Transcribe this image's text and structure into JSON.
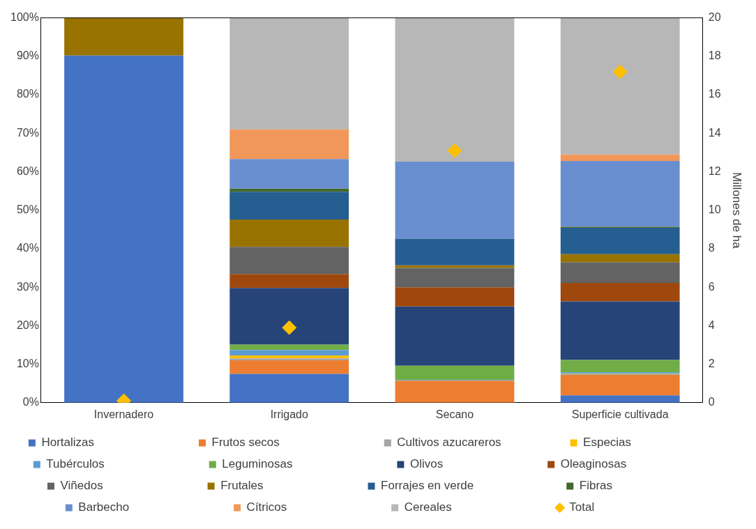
{
  "chart_data": {
    "type": "bar",
    "stacked": true,
    "categories": [
      "Invernadero",
      "Irrigado",
      "Secano",
      "Superficie cultivada"
    ],
    "ylim": [
      0,
      100
    ],
    "yticks": [
      {
        "value": 0,
        "label": "0%"
      },
      {
        "value": 10,
        "label": "10%"
      },
      {
        "value": 20,
        "label": "20%"
      },
      {
        "value": 30,
        "label": "30%"
      },
      {
        "value": 40,
        "label": "40%"
      },
      {
        "value": 50,
        "label": "50%"
      },
      {
        "value": 60,
        "label": "60%"
      },
      {
        "value": 70,
        "label": "70%"
      },
      {
        "value": 80,
        "label": "80%"
      },
      {
        "value": 90,
        "label": "90%"
      },
      {
        "value": 100,
        "label": "100%"
      }
    ],
    "y2lim": [
      0,
      20
    ],
    "y2ticks": [
      0,
      2,
      4,
      6,
      8,
      10,
      12,
      14,
      16,
      18,
      20
    ],
    "y2label": "Millones de ha",
    "legend": "bottom",
    "grid": false,
    "series": [
      {
        "name": "Hortalizas",
        "color": "#4472c4",
        "values": [
          90.2,
          7.5,
          0,
          1.9
        ]
      },
      {
        "name": "Frutos secos",
        "color": "#ed7d31",
        "values": [
          0,
          3.5,
          5.7,
          5.3
        ]
      },
      {
        "name": "Cultivos azucareros",
        "color": "#a5a5a5",
        "values": [
          0,
          0.5,
          0,
          0.2
        ]
      },
      {
        "name": "Especias",
        "color": "#ffc000",
        "values": [
          0,
          0.8,
          0,
          0.1
        ]
      },
      {
        "name": "Tubérculos",
        "color": "#5b9bd5",
        "values": [
          0,
          1.4,
          0.2,
          0.4
        ]
      },
      {
        "name": "Leguminosas",
        "color": "#70ad47",
        "values": [
          0,
          1.4,
          3.7,
          3.2
        ]
      },
      {
        "name": "Olivos",
        "color": "#264478",
        "values": [
          0,
          14.7,
          15.4,
          15.2
        ]
      },
      {
        "name": "Oleaginosas",
        "color": "#9e480e",
        "values": [
          0,
          3.6,
          5.0,
          4.8
        ]
      },
      {
        "name": "Viñedos",
        "color": "#636363",
        "values": [
          0,
          7.1,
          5.0,
          5.4
        ]
      },
      {
        "name": "Frutales",
        "color": "#997300",
        "values": [
          9.8,
          7.1,
          0.7,
          2.1
        ]
      },
      {
        "name": "Forrajes en verde",
        "color": "#255e91",
        "values": [
          0,
          7.2,
          6.9,
          6.8
        ]
      },
      {
        "name": "Fibras",
        "color": "#43682b",
        "values": [
          0,
          0.8,
          0,
          0.3
        ]
      },
      {
        "name": "Barbecho",
        "color": "#698ed0",
        "values": [
          0,
          7.7,
          20.0,
          17.1
        ]
      },
      {
        "name": "Cítricos",
        "color": "#f1975a",
        "values": [
          0,
          7.7,
          0,
          1.7
        ]
      },
      {
        "name": "Cereales",
        "color": "#b7b7b7",
        "values": [
          0,
          29.0,
          37.4,
          35.5
        ]
      },
      {
        "name": "Total",
        "color": "#ffc000",
        "type": "scatter",
        "axis": "y2",
        "marker": "diamond",
        "values": [
          0.1,
          3.9,
          13.1,
          17.2
        ]
      }
    ]
  }
}
